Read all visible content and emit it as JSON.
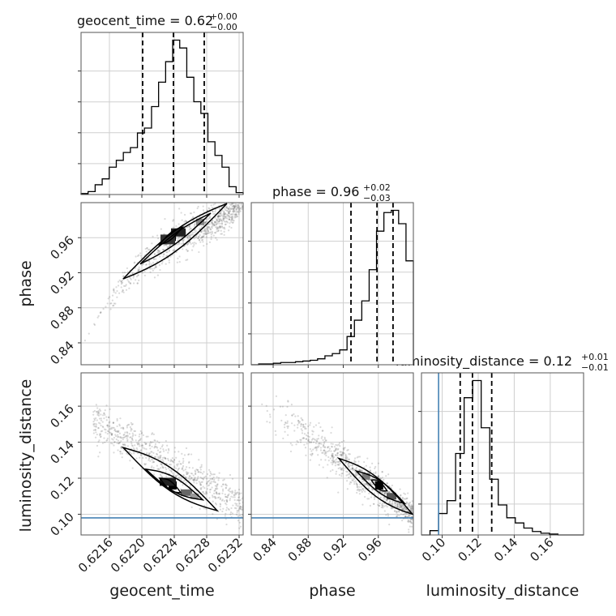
{
  "chart_data": {
    "type": "corner",
    "parameters": [
      "geocent_time",
      "phase",
      "luminosity_distance"
    ],
    "truth_color": "#4682b4",
    "truth": {
      "luminosity_distance": 0.098
    },
    "panels": {
      "geocent_time": {
        "title_main": "geocent_time = 0.62",
        "title_plus": "+0.00",
        "title_minus": "−0.00",
        "range": [
          0.62125,
          0.62325
        ],
        "ticks": [
          0.6216,
          0.622,
          0.6224,
          0.6228,
          0.6232
        ],
        "tick_labels": [
          "0.6216",
          "0.6220",
          "0.6224",
          "0.6228",
          "0.6232"
        ],
        "quantiles": [
          0.62201,
          0.62239,
          0.62277
        ],
        "hist_counts": [
          1,
          3,
          10,
          16,
          28,
          35,
          43,
          48,
          63,
          68,
          90,
          115,
          136,
          158,
          150,
          120,
          95,
          83,
          54,
          40,
          28,
          8,
          2
        ]
      },
      "phase": {
        "title_main": "phase = 0.96",
        "title_plus": "+0.02",
        "title_minus": "−0.03",
        "range": [
          0.815,
          1.0
        ],
        "ticks": [
          0.84,
          0.88,
          0.92,
          0.96
        ],
        "tick_labels": [
          "0.84",
          "0.88",
          "0.92",
          "0.96"
        ],
        "quantiles": [
          0.9288,
          0.9585,
          0.9768
        ],
        "hist_counts": [
          0,
          1,
          1,
          2,
          3,
          3,
          4,
          5,
          6,
          8,
          12,
          15,
          20,
          38,
          60,
          86,
          128,
          180,
          205,
          208,
          190,
          140
        ]
      },
      "luminosity_distance": {
        "title_main": "luminosity_distance = 0.12",
        "title_plus": "+0.01",
        "title_minus": "−0.01",
        "range": [
          0.0885,
          0.1785
        ],
        "ticks": [
          0.1,
          0.12,
          0.14,
          0.16
        ],
        "tick_labels": [
          "0.10",
          "0.12",
          "0.14",
          "0.16"
        ],
        "quantiles": [
          0.11,
          0.1168,
          0.1275
        ],
        "hist_counts": [
          0,
          5,
          25,
          40,
          95,
          160,
          180,
          125,
          65,
          35,
          20,
          14,
          8,
          4,
          2,
          1,
          0,
          0,
          0
        ]
      }
    },
    "axis_labels": {
      "x": [
        "geocent_time",
        "phase",
        "luminosity_distance"
      ],
      "y": [
        "phase",
        "luminosity_distance"
      ]
    },
    "grid": true
  }
}
